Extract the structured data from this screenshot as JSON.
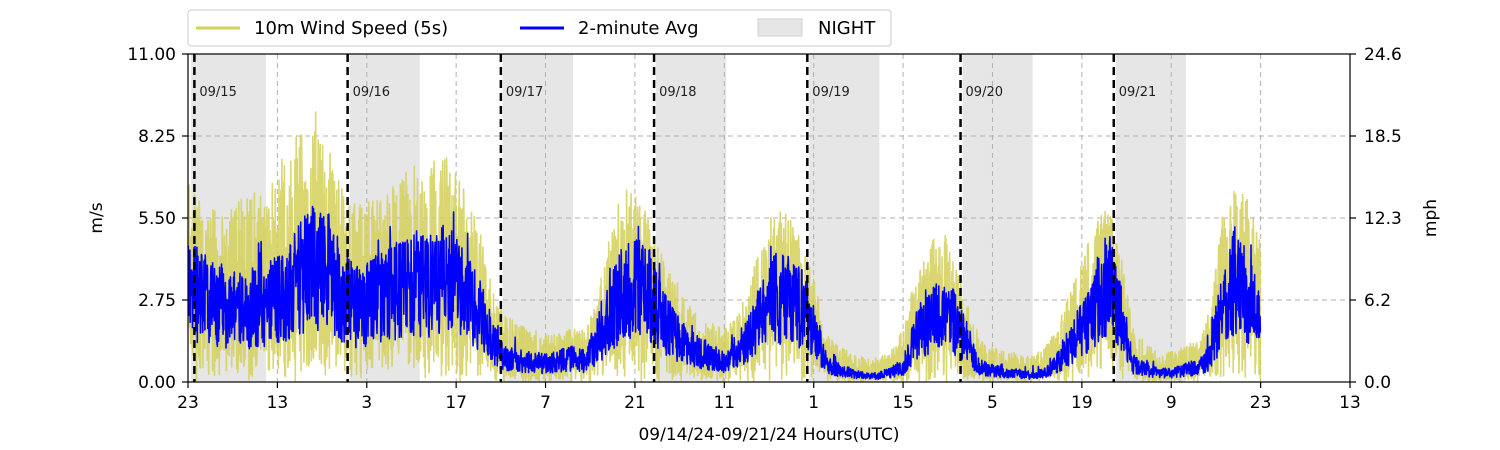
{
  "chart_data": {
    "type": "line",
    "xlabel": "09/14/24-09/21/24  Hours(UTC)",
    "ylabel_left": "m/s",
    "ylabel_right": "mph",
    "ylim": [
      0,
      11
    ],
    "xlim_hours": [
      0,
      182
    ],
    "y_ticks_left": [
      "0.00",
      "2.75",
      "5.50",
      "8.25",
      "11.00"
    ],
    "y_ticks_right": [
      "0.0",
      "6.2",
      "12.3",
      "18.5",
      "24.6"
    ],
    "x_tick_labels": [
      "23",
      "13",
      "3",
      "17",
      "7",
      "21",
      "11",
      "1",
      "15",
      "5",
      "19",
      "9",
      "23",
      "13"
    ],
    "x_tick_hours": [
      0,
      14,
      28,
      42,
      56,
      70,
      84,
      98,
      112,
      126,
      140,
      154,
      168,
      182
    ],
    "day_boundaries": [
      {
        "hour": 1,
        "label": "09/15"
      },
      {
        "hour": 25,
        "label": "09/16"
      },
      {
        "hour": 49,
        "label": "09/17"
      },
      {
        "hour": 73,
        "label": "09/18"
      },
      {
        "hour": 97,
        "label": "09/19"
      },
      {
        "hour": 121,
        "label": "09/20"
      },
      {
        "hour": 145,
        "label": "09/21"
      }
    ],
    "night_periods": [
      [
        0.5,
        12.2
      ],
      [
        25.3,
        36.3
      ],
      [
        49.3,
        60.3
      ],
      [
        73.3,
        84.3
      ],
      [
        97.3,
        108.3
      ],
      [
        121.3,
        132.3
      ],
      [
        145.3,
        156.3
      ]
    ],
    "legend": [
      "10m Wind Speed (5s)",
      "2-minute Avg",
      "NIGHT"
    ],
    "legend_position": "top-left",
    "grid": true,
    "hourly_profile": {
      "hours": [
        0,
        2,
        4,
        6,
        8,
        10,
        12,
        14,
        16,
        18,
        20,
        22,
        24,
        26,
        28,
        30,
        32,
        34,
        36,
        38,
        40,
        42,
        44,
        46,
        48,
        50,
        52,
        54,
        56,
        58,
        60,
        62,
        64,
        66,
        68,
        70,
        72,
        74,
        76,
        78,
        80,
        82,
        84,
        86,
        88,
        90,
        92,
        94,
        96,
        98,
        100,
        102,
        104,
        106,
        108,
        110,
        112,
        114,
        116,
        118,
        120,
        122,
        124,
        126,
        128,
        130,
        132,
        134,
        136,
        138,
        140,
        142,
        144,
        146,
        148,
        150,
        152,
        154,
        156,
        158,
        160,
        162,
        164,
        166,
        168
      ],
      "avg_mps": [
        3.2,
        2.8,
        2.6,
        2.5,
        2.4,
        2.5,
        2.6,
        2.8,
        3.0,
        3.6,
        3.8,
        3.6,
        3.0,
        2.5,
        2.6,
        2.8,
        3.0,
        3.1,
        3.3,
        3.2,
        3.4,
        3.1,
        2.7,
        2.2,
        1.2,
        0.8,
        0.7,
        0.7,
        0.6,
        0.7,
        0.8,
        0.7,
        1.2,
        2.2,
        3.0,
        3.2,
        3.0,
        2.2,
        1.6,
        1.2,
        1.0,
        0.8,
        0.7,
        1.0,
        1.5,
        2.3,
        2.8,
        2.8,
        2.5,
        1.8,
        0.6,
        0.4,
        0.3,
        0.2,
        0.2,
        0.3,
        0.5,
        1.5,
        2.0,
        2.2,
        2.0,
        1.3,
        0.5,
        0.4,
        0.3,
        0.3,
        0.2,
        0.3,
        0.6,
        1.2,
        1.8,
        2.5,
        3.4,
        2.2,
        0.6,
        0.4,
        0.3,
        0.3,
        0.4,
        0.5,
        0.8,
        2.5,
        3.4,
        2.8,
        2.2
      ],
      "peak_mps": [
        7.0,
        6.0,
        5.8,
        5.5,
        6.2,
        6.5,
        6.2,
        7.2,
        8.2,
        9.0,
        9.3,
        8.0,
        6.6,
        6.0,
        6.1,
        6.3,
        6.6,
        7.0,
        7.4,
        7.4,
        7.7,
        7.0,
        6.2,
        5.0,
        2.8,
        2.2,
        1.9,
        1.8,
        1.6,
        1.6,
        1.8,
        1.8,
        2.8,
        4.8,
        6.5,
        6.4,
        5.6,
        4.4,
        3.6,
        2.8,
        2.3,
        2.0,
        1.8,
        2.2,
        3.4,
        5.0,
        5.8,
        5.6,
        4.8,
        3.5,
        1.6,
        1.2,
        1.0,
        0.8,
        0.8,
        1.0,
        1.8,
        3.6,
        4.6,
        5.5,
        4.4,
        2.7,
        1.5,
        1.2,
        1.0,
        1.0,
        0.9,
        1.1,
        1.8,
        3.0,
        4.2,
        5.2,
        6.0,
        4.6,
        1.8,
        1.3,
        1.0,
        1.0,
        1.2,
        1.4,
        2.4,
        5.6,
        6.6,
        6.1,
        4.8
      ]
    },
    "series": [
      {
        "name": "10m Wind Speed (5s)",
        "color": "#d4d05a"
      },
      {
        "name": "2-minute Avg",
        "color": "#0000ff"
      }
    ]
  }
}
